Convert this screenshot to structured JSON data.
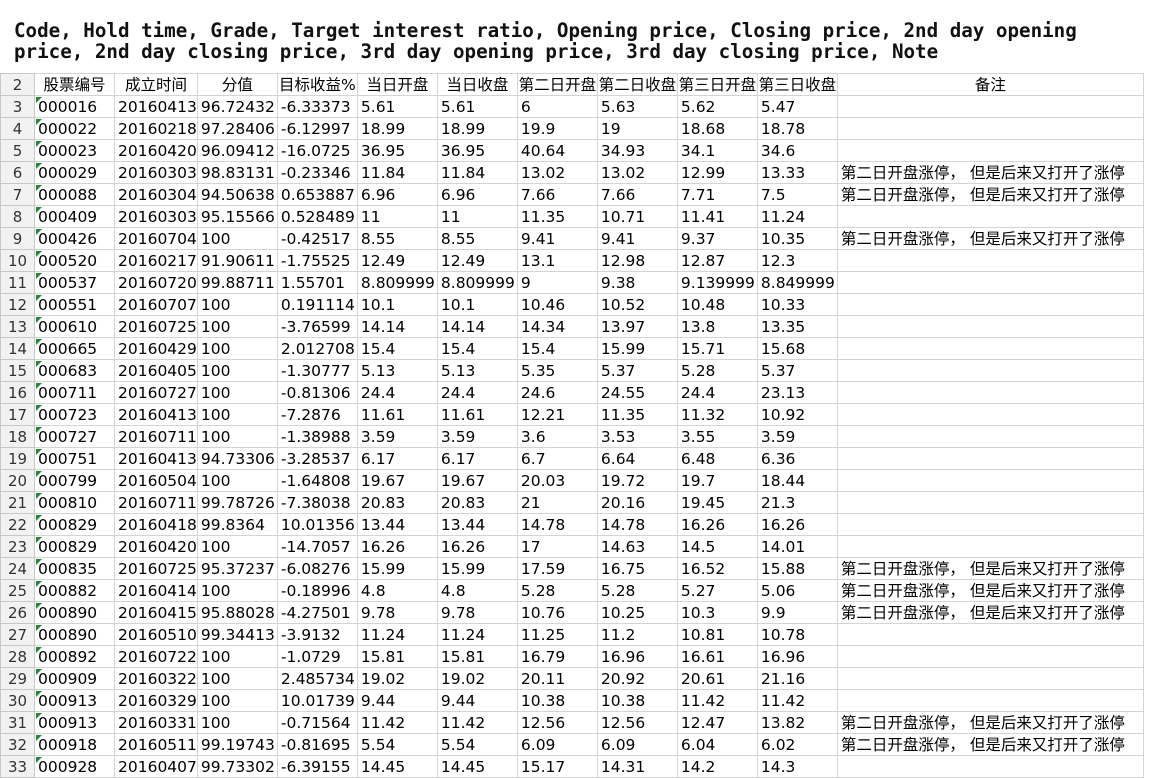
{
  "caption": "Code, Hold time, Grade, Target interest ratio, Opening price, Closing price, 2nd day opening price, 2nd day closing price, 3rd day opening price, 3rd day closing price, Note",
  "headers": {
    "row_number": "2",
    "cells": [
      "股票编号",
      "成立时间",
      "分值",
      "目标收益%",
      "当日开盘",
      "当日收盘",
      "第二日开盘",
      "第二日收盘",
      "第三日开盘",
      "第三日收盘",
      "备注"
    ]
  },
  "rows": [
    {
      "n": "3",
      "cells": [
        "000016",
        "20160413",
        "96.72432",
        "-6.33373",
        "5.61",
        "5.61",
        "6",
        "5.63",
        "5.62",
        "5.47",
        ""
      ]
    },
    {
      "n": "4",
      "cells": [
        "000022",
        "20160218",
        "97.28406",
        "-6.12997",
        "18.99",
        "18.99",
        "19.9",
        "19",
        "18.68",
        "18.78",
        ""
      ]
    },
    {
      "n": "5",
      "cells": [
        "000023",
        "20160420",
        "96.09412",
        "-16.0725",
        "36.95",
        "36.95",
        "40.64",
        "34.93",
        "34.1",
        "34.6",
        ""
      ]
    },
    {
      "n": "6",
      "cells": [
        "000029",
        "20160303",
        "98.83131",
        "-0.23346",
        "11.84",
        "11.84",
        "13.02",
        "13.02",
        "12.99",
        "13.33",
        "第二日开盘涨停， 但是后来又打开了涨停"
      ]
    },
    {
      "n": "7",
      "cells": [
        "000088",
        "20160304",
        "94.50638",
        "0.653887",
        "6.96",
        "6.96",
        "7.66",
        "7.66",
        "7.71",
        "7.5",
        "第二日开盘涨停， 但是后来又打开了涨停"
      ]
    },
    {
      "n": "8",
      "cells": [
        "000409",
        "20160303",
        "95.15566",
        "0.528489",
        "11",
        "11",
        "11.35",
        "10.71",
        "11.41",
        "11.24",
        ""
      ]
    },
    {
      "n": "9",
      "cells": [
        "000426",
        "20160704",
        "100",
        "-0.42517",
        "8.55",
        "8.55",
        "9.41",
        "9.41",
        "9.37",
        "10.35",
        "第二日开盘涨停， 但是后来又打开了涨停"
      ]
    },
    {
      "n": "10",
      "cells": [
        "000520",
        "20160217",
        "91.90611",
        "-1.75525",
        "12.49",
        "12.49",
        "13.1",
        "12.98",
        "12.87",
        "12.3",
        ""
      ]
    },
    {
      "n": "11",
      "cells": [
        "000537",
        "20160720",
        "99.88711",
        "1.55701",
        "8.809999",
        "8.809999",
        "9",
        "9.38",
        "9.139999",
        "8.849999",
        ""
      ]
    },
    {
      "n": "12",
      "cells": [
        "000551",
        "20160707",
        "100",
        "0.191114",
        "10.1",
        "10.1",
        "10.46",
        "10.52",
        "10.48",
        "10.33",
        ""
      ]
    },
    {
      "n": "13",
      "cells": [
        "000610",
        "20160725",
        "100",
        "-3.76599",
        "14.14",
        "14.14",
        "14.34",
        "13.97",
        "13.8",
        "13.35",
        ""
      ]
    },
    {
      "n": "14",
      "cells": [
        "000665",
        "20160429",
        "100",
        "2.012708",
        "15.4",
        "15.4",
        "15.4",
        "15.99",
        "15.71",
        "15.68",
        ""
      ]
    },
    {
      "n": "15",
      "cells": [
        "000683",
        "20160405",
        "100",
        "-1.30777",
        "5.13",
        "5.13",
        "5.35",
        "5.37",
        "5.28",
        "5.37",
        ""
      ]
    },
    {
      "n": "16",
      "cells": [
        "000711",
        "20160727",
        "100",
        "-0.81306",
        "24.4",
        "24.4",
        "24.6",
        "24.55",
        "24.4",
        "23.13",
        ""
      ]
    },
    {
      "n": "17",
      "cells": [
        "000723",
        "20160413",
        "100",
        "-7.2876",
        "11.61",
        "11.61",
        "12.21",
        "11.35",
        "11.32",
        "10.92",
        ""
      ]
    },
    {
      "n": "18",
      "cells": [
        "000727",
        "20160711",
        "100",
        "-1.38988",
        "3.59",
        "3.59",
        "3.6",
        "3.53",
        "3.55",
        "3.59",
        ""
      ]
    },
    {
      "n": "19",
      "cells": [
        "000751",
        "20160413",
        "94.73306",
        "-3.28537",
        "6.17",
        "6.17",
        "6.7",
        "6.64",
        "6.48",
        "6.36",
        ""
      ]
    },
    {
      "n": "20",
      "cells": [
        "000799",
        "20160504",
        "100",
        "-1.64808",
        "19.67",
        "19.67",
        "20.03",
        "19.72",
        "19.7",
        "18.44",
        ""
      ]
    },
    {
      "n": "21",
      "cells": [
        "000810",
        "20160711",
        "99.78726",
        "-7.38038",
        "20.83",
        "20.83",
        "21",
        "20.16",
        "19.45",
        "21.3",
        ""
      ]
    },
    {
      "n": "22",
      "cells": [
        "000829",
        "20160418",
        "99.8364",
        "10.01356",
        "13.44",
        "13.44",
        "14.78",
        "14.78",
        "16.26",
        "16.26",
        ""
      ]
    },
    {
      "n": "23",
      "cells": [
        "000829",
        "20160420",
        "100",
        "-14.7057",
        "16.26",
        "16.26",
        "17",
        "14.63",
        "14.5",
        "14.01",
        ""
      ]
    },
    {
      "n": "24",
      "cells": [
        "000835",
        "20160725",
        "95.37237",
        "-6.08276",
        "15.99",
        "15.99",
        "17.59",
        "16.75",
        "16.52",
        "15.88",
        "第二日开盘涨停， 但是后来又打开了涨停"
      ]
    },
    {
      "n": "25",
      "cells": [
        "000882",
        "20160414",
        "100",
        "-0.18996",
        "4.8",
        "4.8",
        "5.28",
        "5.28",
        "5.27",
        "5.06",
        "第二日开盘涨停， 但是后来又打开了涨停"
      ]
    },
    {
      "n": "26",
      "cells": [
        "000890",
        "20160415",
        "95.88028",
        "-4.27501",
        "9.78",
        "9.78",
        "10.76",
        "10.25",
        "10.3",
        "9.9",
        "第二日开盘涨停， 但是后来又打开了涨停"
      ]
    },
    {
      "n": "27",
      "cells": [
        "000890",
        "20160510",
        "99.34413",
        "-3.9132",
        "11.24",
        "11.24",
        "11.25",
        "11.2",
        "10.81",
        "10.78",
        ""
      ]
    },
    {
      "n": "28",
      "cells": [
        "000892",
        "20160722",
        "100",
        "-1.0729",
        "15.81",
        "15.81",
        "16.79",
        "16.96",
        "16.61",
        "16.96",
        ""
      ]
    },
    {
      "n": "29",
      "cells": [
        "000909",
        "20160322",
        "100",
        "2.485734",
        "19.02",
        "19.02",
        "20.11",
        "20.92",
        "20.61",
        "21.16",
        ""
      ]
    },
    {
      "n": "30",
      "cells": [
        "000913",
        "20160329",
        "100",
        "10.01739",
        "9.44",
        "9.44",
        "10.38",
        "10.38",
        "11.42",
        "11.42",
        ""
      ]
    },
    {
      "n": "31",
      "cells": [
        "000913",
        "20160331",
        "100",
        "-0.71564",
        "11.42",
        "11.42",
        "12.56",
        "12.56",
        "12.47",
        "13.82",
        "第二日开盘涨停， 但是后来又打开了涨停"
      ]
    },
    {
      "n": "32",
      "cells": [
        "000918",
        "20160511",
        "99.19743",
        "-0.81695",
        "5.54",
        "5.54",
        "6.09",
        "6.09",
        "6.04",
        "6.02",
        "第二日开盘涨停， 但是后来又打开了涨停"
      ]
    },
    {
      "n": "33",
      "cells": [
        "000928",
        "20160407",
        "99.73302",
        "-6.39155",
        "14.45",
        "14.45",
        "15.17",
        "14.31",
        "14.2",
        "14.3",
        ""
      ]
    }
  ]
}
